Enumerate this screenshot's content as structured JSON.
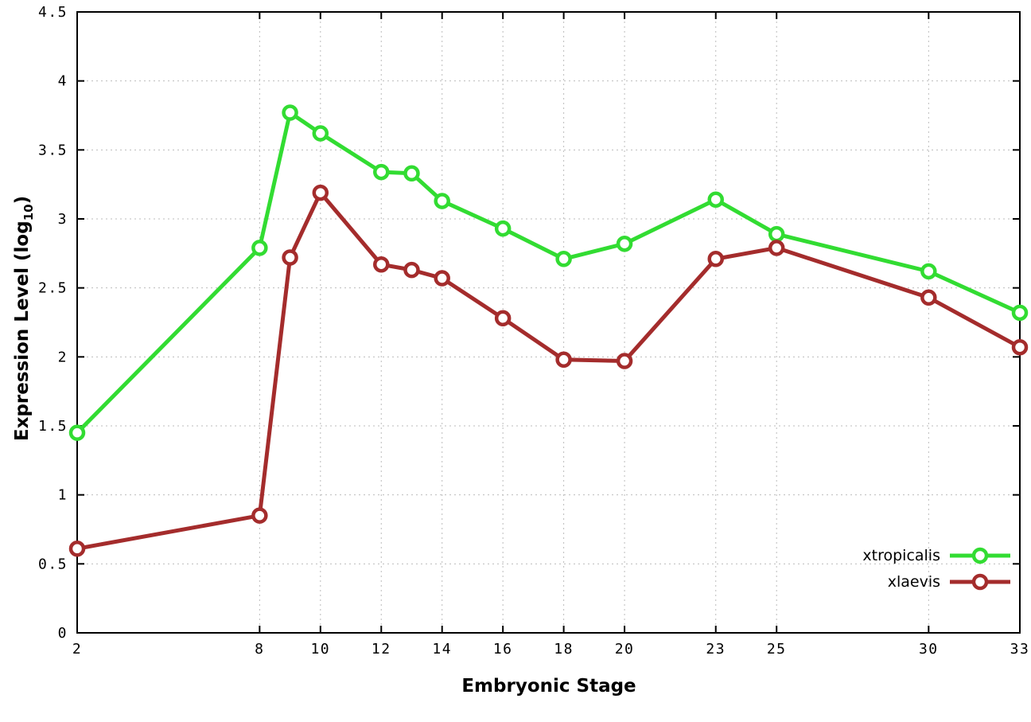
{
  "chart_data": {
    "type": "line",
    "title": "",
    "xlabel": "Embryonic Stage",
    "ylabel_main": "Expression Level (log",
    "ylabel_sub": "10",
    "ylabel_end": ")",
    "xlim": [
      2,
      33
    ],
    "ylim": [
      0,
      4.5
    ],
    "xticks": [
      2,
      8,
      10,
      12,
      14,
      16,
      18,
      20,
      23,
      25,
      30,
      33
    ],
    "yticks": [
      0,
      0.5,
      1,
      1.5,
      2,
      2.5,
      3,
      3.5,
      4,
      4.5
    ],
    "ytick_labels": [
      "0",
      "0.5",
      "1",
      "1.5",
      "2",
      "2.5",
      "3",
      "3.5",
      "4",
      "4.5"
    ],
    "grid": true,
    "legend_position": "bottom-right",
    "x": [
      2,
      8,
      9,
      10,
      12,
      13,
      14,
      16,
      18,
      20,
      23,
      25,
      30,
      33
    ],
    "series": [
      {
        "name": "xtropicalis",
        "color": "#32dc32",
        "values": [
          1.45,
          2.79,
          3.77,
          3.62,
          3.34,
          3.33,
          3.13,
          2.93,
          2.71,
          2.82,
          3.14,
          2.89,
          2.62,
          2.32
        ]
      },
      {
        "name": "xlaevis",
        "color": "#a42c2c",
        "values": [
          0.61,
          0.85,
          2.72,
          3.19,
          2.67,
          2.63,
          2.57,
          2.28,
          1.98,
          1.97,
          2.71,
          2.79,
          2.43,
          2.07
        ]
      }
    ]
  }
}
